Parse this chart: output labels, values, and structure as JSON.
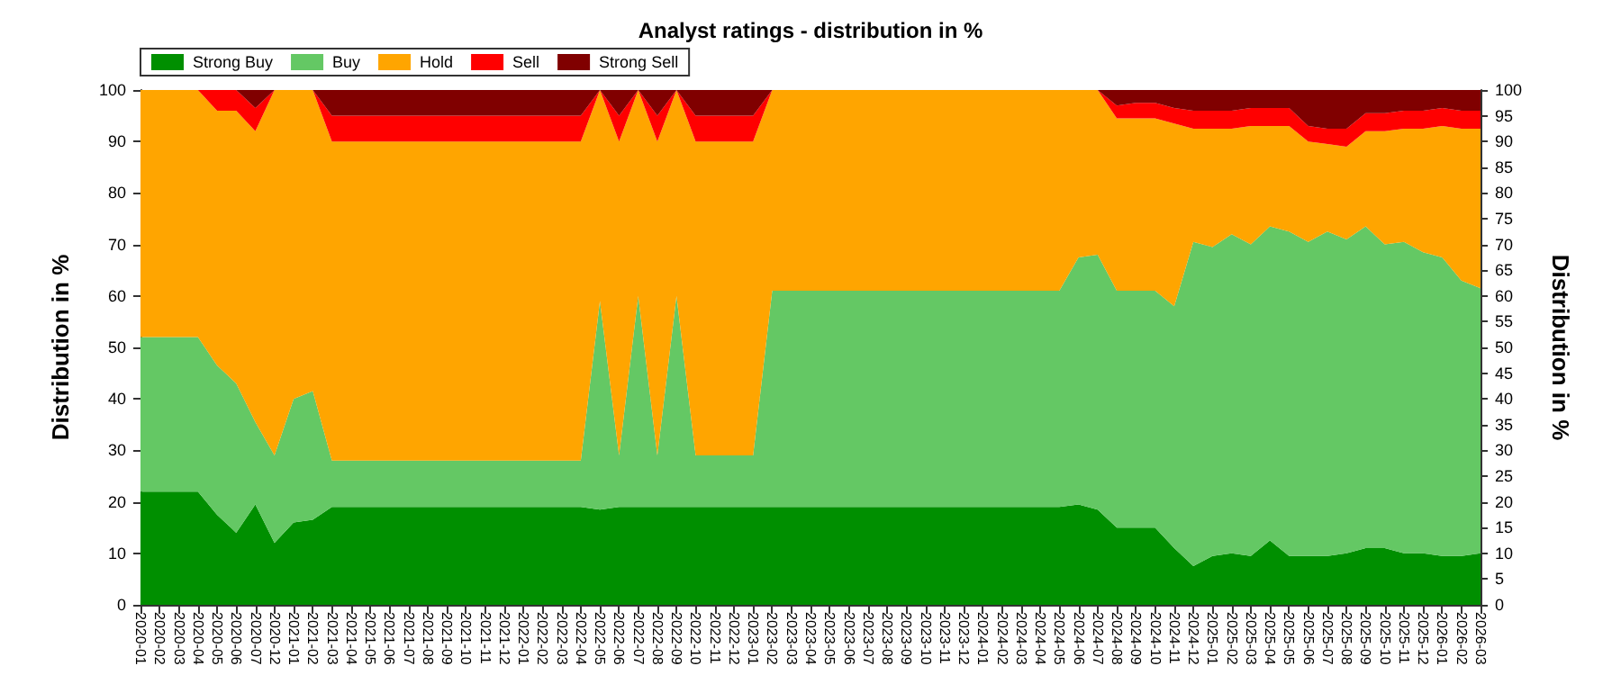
{
  "chart_data": {
    "type": "area",
    "stacked": true,
    "title": "Analyst ratings - distribution in %",
    "ylabel": "Distribution in %",
    "y2label": "Distribution in %",
    "categories": [
      "2020-01",
      "2020-02",
      "2020-03",
      "2020-04",
      "2020-05",
      "2020-06",
      "2020-07",
      "2020-12",
      "2021-01",
      "2021-02",
      "2021-03",
      "2021-04",
      "2021-05",
      "2021-06",
      "2021-07",
      "2021-08",
      "2021-09",
      "2021-10",
      "2021-11",
      "2021-12",
      "2022-01",
      "2022-02",
      "2022-03",
      "2022-04",
      "2022-05",
      "2022-06",
      "2022-07",
      "2022-08",
      "2022-09",
      "2022-10",
      "2022-11",
      "2022-12",
      "2023-01",
      "2023-02",
      "2023-03",
      "2023-04",
      "2023-05",
      "2023-06",
      "2023-07",
      "2023-08",
      "2023-09",
      "2023-10",
      "2023-11",
      "2023-12",
      "2024-01",
      "2024-02",
      "2024-03",
      "2024-04",
      "2024-05",
      "2024-06",
      "2024-07",
      "2024-08",
      "2024-09",
      "2024-10",
      "2024-11",
      "2024-12",
      "2025-01",
      "2025-02",
      "2025-03",
      "2025-04",
      "2025-05",
      "2025-06",
      "2025-07",
      "2025-08",
      "2025-09",
      "2025-10",
      "2025-11",
      "2025-12",
      "2026-01",
      "2026-02",
      "2026-03"
    ],
    "series": [
      {
        "name": "Strong Buy",
        "color": "#008f00",
        "values": [
          22,
          22,
          22,
          22,
          17.5,
          14,
          19.5,
          12,
          16,
          16.5,
          19,
          19,
          19,
          19,
          19,
          19,
          19,
          19,
          19,
          19,
          19,
          19,
          19,
          19,
          18.5,
          19,
          19,
          19,
          19,
          19,
          19,
          19,
          19,
          19,
          19,
          19,
          19,
          19,
          19,
          19,
          19,
          19,
          19,
          19,
          19,
          19,
          19,
          19,
          19,
          19.5,
          18.5,
          15,
          15,
          15,
          11,
          7.5,
          9.5,
          10,
          9.5,
          12.5,
          9.5,
          9.5,
          9.5,
          10,
          11,
          11,
          10,
          10,
          9.5,
          9.5,
          10
        ]
      },
      {
        "name": "Buy",
        "color": "#64c864",
        "values": [
          30,
          30,
          30,
          30,
          29,
          29,
          16,
          17,
          24,
          25,
          9,
          9,
          9,
          9,
          9,
          9,
          9,
          9,
          9,
          9,
          9,
          9,
          9,
          9,
          40.5,
          10,
          41,
          10,
          41,
          10,
          10,
          10,
          10,
          42,
          42,
          42,
          42,
          42,
          42,
          42,
          42,
          42,
          42,
          42,
          42,
          42,
          42,
          42,
          42,
          48,
          49.5,
          46,
          46,
          46,
          47,
          63,
          60,
          62,
          60.5,
          61,
          63,
          61,
          63,
          61,
          62.5,
          59,
          60.5,
          58.5,
          58,
          53.5,
          51.5
        ]
      },
      {
        "name": "Hold",
        "color": "#ffa500",
        "values": [
          48,
          48,
          48,
          48,
          49.5,
          53,
          56.5,
          71,
          60,
          58.5,
          62,
          62,
          62,
          62,
          62,
          62,
          62,
          62,
          62,
          62,
          62,
          62,
          62,
          62,
          41,
          61,
          40,
          61,
          40,
          61,
          61,
          61,
          61,
          39,
          39,
          39,
          39,
          39,
          39,
          39,
          39,
          39,
          39,
          39,
          39,
          39,
          39,
          39,
          39,
          32.5,
          32,
          33.5,
          33.5,
          33.5,
          35.5,
          22,
          23,
          20.5,
          23,
          19.5,
          20.5,
          19.5,
          17,
          18,
          18.5,
          22,
          22,
          24,
          25.5,
          29.5,
          31
        ]
      },
      {
        "name": "Sell",
        "color": "#ff0000",
        "values": [
          0,
          0,
          0,
          0,
          4,
          4,
          4.5,
          0,
          0,
          0,
          5,
          5,
          5,
          5,
          5,
          5,
          5,
          5,
          5,
          5,
          5,
          5,
          5,
          5,
          0,
          5,
          0,
          5,
          0,
          5,
          5,
          5,
          5,
          0,
          0,
          0,
          0,
          0,
          0,
          0,
          0,
          0,
          0,
          0,
          0,
          0,
          0,
          0,
          0,
          0,
          0,
          2.5,
          3,
          3,
          3,
          3.5,
          3.5,
          3.5,
          3.5,
          3.5,
          3.5,
          3,
          3,
          3.5,
          3.5,
          3.5,
          3.5,
          3.5,
          3.5,
          3.5,
          3.5
        ]
      },
      {
        "name": "Strong Sell",
        "color": "#800000",
        "values": [
          0,
          0,
          0,
          0,
          0,
          0,
          3.5,
          0,
          0,
          0,
          5,
          5,
          5,
          5,
          5,
          5,
          5,
          5,
          5,
          5,
          5,
          5,
          5,
          5,
          0,
          5,
          0,
          5,
          0,
          5,
          5,
          5,
          5,
          0,
          0,
          0,
          0,
          0,
          0,
          0,
          0,
          0,
          0,
          0,
          0,
          0,
          0,
          0,
          0,
          0,
          0,
          3,
          2.5,
          2.5,
          3.5,
          4,
          4,
          4,
          3.5,
          3.5,
          3.5,
          7,
          7.5,
          7.5,
          4.5,
          4.5,
          4,
          4,
          3.5,
          4,
          4
        ]
      }
    ],
    "ylim": [
      0,
      100
    ],
    "yticks": [
      0,
      10,
      20,
      30,
      40,
      50,
      60,
      70,
      80,
      90,
      100
    ],
    "y2lim": [
      0,
      100
    ],
    "y2ticks": [
      0,
      5,
      10,
      15,
      20,
      25,
      30,
      35,
      40,
      45,
      50,
      55,
      60,
      65,
      70,
      75,
      80,
      85,
      90,
      95,
      100
    ],
    "grid": "y",
    "legend": "top left"
  }
}
